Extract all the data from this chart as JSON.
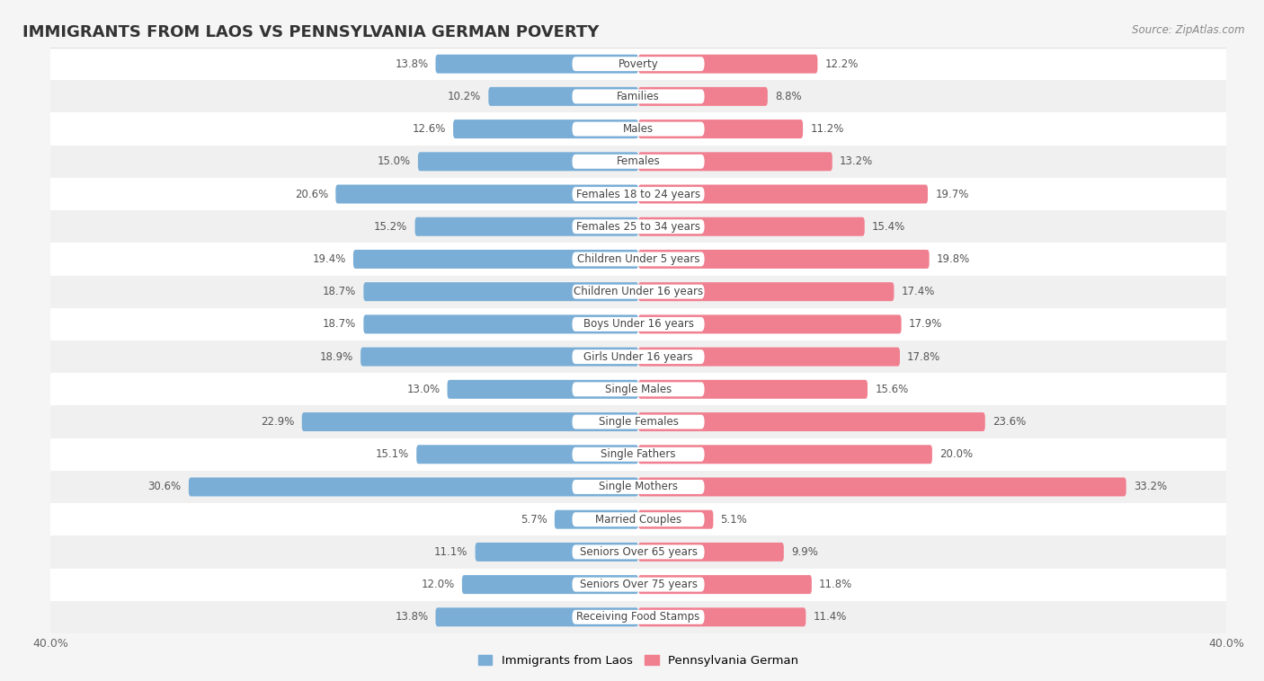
{
  "title": "IMMIGRANTS FROM LAOS VS PENNSYLVANIA GERMAN POVERTY",
  "source": "Source: ZipAtlas.com",
  "categories": [
    "Poverty",
    "Families",
    "Males",
    "Females",
    "Females 18 to 24 years",
    "Females 25 to 34 years",
    "Children Under 5 years",
    "Children Under 16 years",
    "Boys Under 16 years",
    "Girls Under 16 years",
    "Single Males",
    "Single Females",
    "Single Fathers",
    "Single Mothers",
    "Married Couples",
    "Seniors Over 65 years",
    "Seniors Over 75 years",
    "Receiving Food Stamps"
  ],
  "laos_values": [
    13.8,
    10.2,
    12.6,
    15.0,
    20.6,
    15.2,
    19.4,
    18.7,
    18.7,
    18.9,
    13.0,
    22.9,
    15.1,
    30.6,
    5.7,
    11.1,
    12.0,
    13.8
  ],
  "pagerman_values": [
    12.2,
    8.8,
    11.2,
    13.2,
    19.7,
    15.4,
    19.8,
    17.4,
    17.9,
    17.8,
    15.6,
    23.6,
    20.0,
    33.2,
    5.1,
    9.9,
    11.8,
    11.4
  ],
  "laos_color": "#7aaed6",
  "pagerman_color": "#f08090",
  "row_color_odd": "#f0f0f0",
  "row_color_even": "#ffffff",
  "background_color": "#f5f5f5",
  "xlim": 40.0,
  "bar_height": 0.58,
  "title_fontsize": 13,
  "label_fontsize": 8.5,
  "category_fontsize": 8.5,
  "legend_labels": [
    "Immigrants from Laos",
    "Pennsylvania German"
  ]
}
